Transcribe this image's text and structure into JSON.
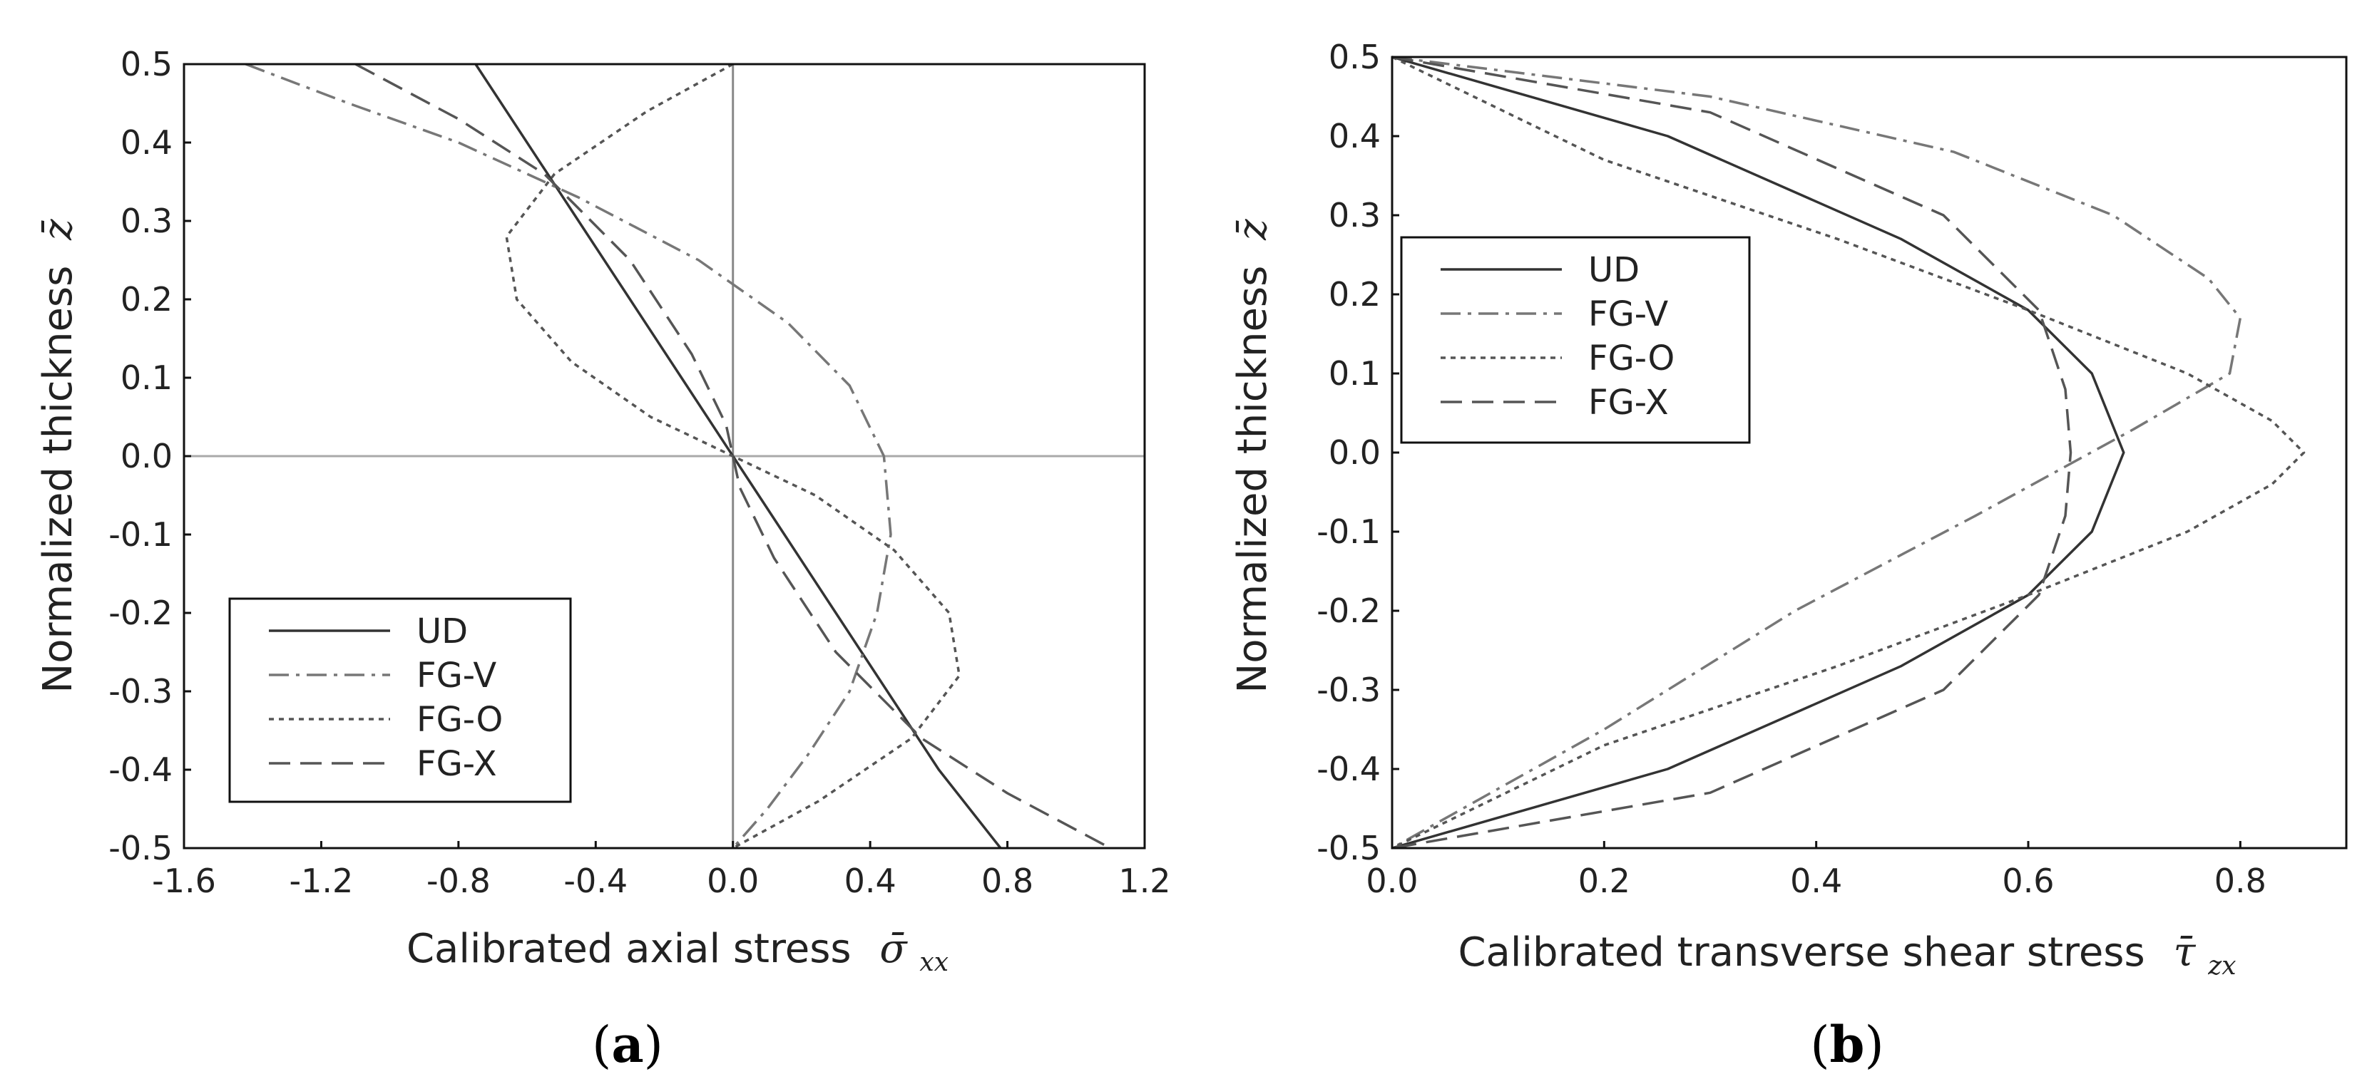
{
  "chart_data": [
    {
      "type": "line",
      "panel_label": "a",
      "xlabel": "Calibrated axial stress",
      "xlabel_symbol": "σ̄",
      "xlabel_symbol_sub": "xx",
      "ylabel": "Normalized thickness",
      "ylabel_symbol": "z̄",
      "xlim": [
        -1.6,
        1.2
      ],
      "ylim": [
        -0.5,
        0.5
      ],
      "xticks": [
        "-1.6",
        "-1.2",
        "-0.8",
        "-0.4",
        "0.0",
        "0.4",
        "0.8",
        "1.2"
      ],
      "yticks": [
        "0.5",
        "0.4",
        "0.3",
        "0.2",
        "0.1",
        "0.0",
        "-0.1",
        "-0.2",
        "-0.3",
        "-0.4",
        "-0.5"
      ],
      "reference_lines": {
        "x": 0.0,
        "y": 0.0
      },
      "legend": [
        "UD",
        "FG-V",
        "FG-O",
        "FG-X"
      ],
      "legend_position": "bottom-left",
      "series": [
        {
          "name": "UD",
          "style": "solid",
          "color": "#333333",
          "x": [
            -0.75,
            -0.45,
            -0.3,
            -0.15,
            0.0,
            0.15,
            0.3,
            0.45,
            0.6,
            0.78
          ],
          "y": [
            0.5,
            0.3,
            0.2,
            0.1,
            0.0,
            -0.1,
            -0.2,
            -0.3,
            -0.4,
            -0.5
          ]
        },
        {
          "name": "FG-V",
          "style": "dashdot",
          "color": "#777777",
          "x": [
            -1.42,
            -1.12,
            -0.8,
            -0.45,
            -0.1,
            0.16,
            0.34,
            0.44,
            0.46,
            0.42,
            0.34,
            0.22,
            0.1,
            0.0
          ],
          "y": [
            0.5,
            0.45,
            0.4,
            0.33,
            0.25,
            0.17,
            0.09,
            0.0,
            -0.1,
            -0.2,
            -0.3,
            -0.38,
            -0.45,
            -0.5
          ]
        },
        {
          "name": "FG-O",
          "style": "dotted",
          "color": "#555555",
          "x": [
            0.0,
            -0.25,
            -0.52,
            -0.66,
            -0.63,
            -0.47,
            -0.24,
            0.0,
            0.24,
            0.47,
            0.63,
            0.66,
            0.52,
            0.25,
            0.0
          ],
          "y": [
            0.5,
            0.44,
            0.36,
            0.28,
            0.2,
            0.12,
            0.05,
            0.0,
            -0.05,
            -0.12,
            -0.2,
            -0.28,
            -0.36,
            -0.44,
            -0.5
          ]
        },
        {
          "name": "FG-X",
          "style": "dashed",
          "color": "#555555",
          "x": [
            -1.1,
            -0.8,
            -0.55,
            -0.3,
            -0.12,
            -0.02,
            0.0,
            0.02,
            0.12,
            0.3,
            0.55,
            0.8,
            1.1
          ],
          "y": [
            0.5,
            0.43,
            0.36,
            0.25,
            0.13,
            0.04,
            0.0,
            -0.04,
            -0.13,
            -0.25,
            -0.36,
            -0.43,
            -0.5
          ]
        }
      ]
    },
    {
      "type": "line",
      "panel_label": "b",
      "xlabel": "Calibrated transverse shear stress",
      "xlabel_symbol": "τ̄",
      "xlabel_symbol_sub": "zx",
      "ylabel": "Normalized thickness",
      "ylabel_symbol": "z̄",
      "xlim": [
        0.0,
        0.9
      ],
      "ylim": [
        -0.5,
        0.5
      ],
      "xticks": [
        "0.0",
        "0.2",
        "0.4",
        "0.6",
        "0.8"
      ],
      "yticks": [
        "0.5",
        "0.4",
        "0.3",
        "0.2",
        "0.1",
        "0.0",
        "-0.1",
        "-0.2",
        "-0.3",
        "-0.4",
        "-0.5"
      ],
      "legend": [
        "UD",
        "FG-V",
        "FG-O",
        "FG-X"
      ],
      "legend_position": "top-left",
      "series": [
        {
          "name": "UD",
          "style": "solid",
          "color": "#333333",
          "x": [
            0.0,
            0.26,
            0.48,
            0.6,
            0.66,
            0.69,
            0.66,
            0.6,
            0.48,
            0.26,
            0.0
          ],
          "y": [
            0.5,
            0.4,
            0.27,
            0.18,
            0.1,
            0.0,
            -0.1,
            -0.18,
            -0.27,
            -0.4,
            -0.5
          ]
        },
        {
          "name": "FG-V",
          "style": "dashdot",
          "color": "#777777",
          "x": [
            0.0,
            0.3,
            0.53,
            0.68,
            0.77,
            0.8,
            0.79,
            0.7,
            0.55,
            0.38,
            0.2,
            0.0
          ],
          "y": [
            0.5,
            0.45,
            0.38,
            0.3,
            0.22,
            0.17,
            0.1,
            0.03,
            -0.08,
            -0.2,
            -0.35,
            -0.5
          ]
        },
        {
          "name": "FG-O",
          "style": "dotted",
          "color": "#555555",
          "x": [
            0.0,
            0.2,
            0.42,
            0.6,
            0.75,
            0.83,
            0.86,
            0.83,
            0.75,
            0.6,
            0.42,
            0.2,
            0.0
          ],
          "y": [
            0.5,
            0.37,
            0.27,
            0.18,
            0.1,
            0.04,
            0.0,
            -0.04,
            -0.1,
            -0.18,
            -0.27,
            -0.37,
            -0.5
          ]
        },
        {
          "name": "FG-X",
          "style": "dashed",
          "color": "#555555",
          "x": [
            0.0,
            0.3,
            0.52,
            0.61,
            0.635,
            0.64,
            0.635,
            0.61,
            0.52,
            0.3,
            0.0
          ],
          "y": [
            0.5,
            0.43,
            0.3,
            0.18,
            0.08,
            0.0,
            -0.08,
            -0.18,
            -0.3,
            -0.43,
            -0.5
          ]
        }
      ]
    }
  ]
}
